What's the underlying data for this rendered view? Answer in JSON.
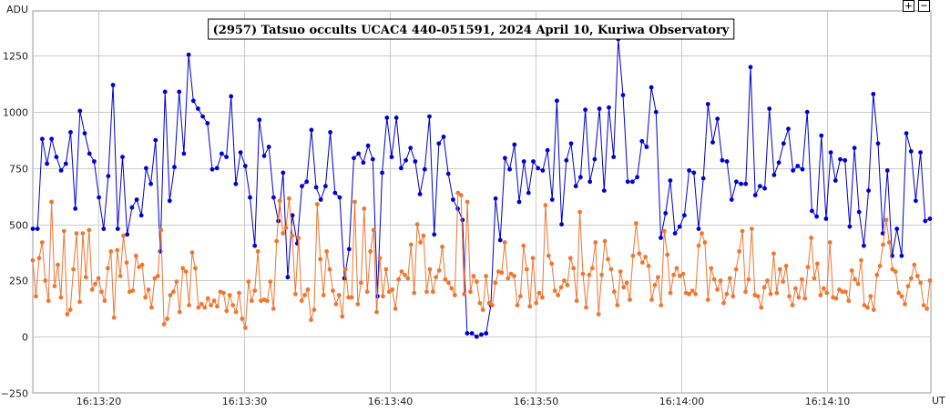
{
  "chart_data": {
    "type": "line",
    "title": "(2957) Tatsuo occults UCAC4 440-051591, 2024 April 10, Kuriwa Observatory",
    "ylabel": "ADU",
    "xlabel": "UT",
    "y_ticks": [
      "1250",
      "1000",
      "750",
      "500",
      "250",
      "0",
      "−250"
    ],
    "y_tick_values": [
      1250,
      1000,
      750,
      500,
      250,
      0,
      -250
    ],
    "x_ticks": [
      "16:13:20",
      "16:13:30",
      "16:13:40",
      "16:13:50",
      "16:14:00",
      "16:14:10"
    ],
    "ylim": [
      -250,
      1450
    ],
    "grid": true,
    "series": [
      {
        "color": "#0000cc",
        "values": [
          480,
          480,
          880,
          770,
          880,
          800,
          740,
          770,
          910,
          570,
          1005,
          905,
          815,
          780,
          620,
          480,
          715,
          1120,
          480,
          800,
          455,
          575,
          610,
          540,
          750,
          680,
          875,
          380,
          1090,
          605,
          755,
          1090,
          815,
          1255,
          1050,
          1015,
          980,
          950,
          745,
          750,
          815,
          800,
          1070,
          680,
          820,
          760,
          620,
          405,
          965,
          805,
          845,
          620,
          515,
          730,
          265,
          540,
          415,
          670,
          690,
          920,
          665,
          610,
          670,
          910,
          640,
          620,
          260,
          390,
          795,
          815,
          775,
          850,
          790,
          180,
          730,
          975,
          800,
          975,
          750,
          785,
          840,
          780,
          635,
          745,
          980,
          455,
          860,
          890,
          725,
          610,
          570,
          520,
          15,
          15,
          0,
          10,
          15,
          140,
          615,
          430,
          795,
          745,
          855,
          600,
          780,
          640,
          780,
          750,
          740,
          830,
          610,
          1050,
          500,
          785,
          860,
          670,
          710,
          1010,
          690,
          790,
          1015,
          650,
          1020,
          800,
          1325,
          1075,
          690,
          690,
          710,
          870,
          845,
          1110,
          1000,
          440,
          550,
          695,
          460,
          490,
          540,
          740,
          730,
          480,
          705,
          1035,
          865,
          970,
          785,
          780,
          610,
          690,
          680,
          680,
          1200,
          630,
          670,
          660,
          1015,
          720,
          775,
          860,
          925,
          740,
          760,
          745,
          1000,
          560,
          535,
          895,
          525,
          820,
          695,
          790,
          785,
          490,
          840,
          555,
          405,
          650,
          1080,
          860,
          460,
          740,
          360,
          480,
          360,
          905,
          825,
          605,
          820,
          515,
          525
        ]
      },
      {
        "color": "#ee7733",
        "values": [
          340,
          180,
          350,
          420,
          250,
          160,
          600,
          225,
          320,
          175,
          470,
          100,
          120,
          300,
          460,
          155,
          460,
          265,
          475,
          210,
          235,
          260,
          200,
          160,
          305,
          380,
          85,
          385,
          270,
          450,
          330,
          200,
          205,
          360,
          310,
          320,
          175,
          210,
          130,
          260,
          270,
          475,
          55,
          80,
          185,
          200,
          245,
          110,
          305,
          290,
          140,
          375,
          305,
          130,
          145,
          130,
          170,
          140,
          160,
          135,
          200,
          195,
          115,
          185,
          140,
          110,
          195,
          80,
          40,
          245,
          160,
          205,
          380,
          160,
          165,
          160,
          245,
          125,
          425,
          605,
          460,
          485,
          615,
          450,
          190,
          440,
          160,
          185,
          210,
          75,
          120,
          590,
          345,
          185,
          380,
          300,
          205,
          145,
          185,
          90,
          300,
          175,
          175,
          600,
          145,
          240,
          570,
          200,
          380,
          475,
          110,
          350,
          180,
          300,
          200,
          210,
          125,
          255,
          290,
          275,
          260,
          410,
          195,
          500,
          420,
          450,
          200,
          300,
          200,
          265,
          295,
          400,
          255,
          240,
          215,
          185,
          640,
          630,
          190,
          600,
          200,
          270,
          245,
          150,
          120,
          270,
          150,
          140,
          240,
          290,
          285,
          420,
          260,
          280,
          270,
          140,
          180,
          405,
          300,
          135,
          350,
          150,
          195,
          175,
          585,
          360,
          325,
          205,
          185,
          220,
          250,
          230,
          350,
          305,
          160,
          555,
          280,
          130,
          275,
          305,
          420,
          100,
          275,
          425,
          345,
          300,
          200,
          140,
          290,
          220,
          240,
          165,
          360,
          505,
          370,
          330,
          355,
          315,
          165,
          230,
          265,
          140,
          470,
          365,
          195,
          275,
          305,
          270,
          280,
          195,
          190,
          205,
          190,
          405,
          460,
          420,
          165,
          305,
          255,
          210,
          250,
          150,
          190,
          260,
          180,
          300,
          380,
          470,
          200,
          255,
          480,
          185,
          180,
          130,
          220,
          250,
          190,
          370,
          195,
          300,
          245,
          315,
          180,
          140,
          215,
          175,
          255,
          170,
          310,
          440,
          260,
          325,
          185,
          215,
          195,
          420,
          175,
          170,
          210,
          200,
          200,
          160,
          295,
          255,
          235,
          340,
          140,
          130,
          180,
          120,
          275,
          315,
          410,
          520,
          420,
          300,
          290,
          195,
          180,
          145,
          225,
          260,
          320,
          270,
          240,
          140,
          125,
          250
        ]
      }
    ]
  },
  "controls": {
    "zoom_in_label": "+",
    "zoom_out_label": "−"
  },
  "colors": {
    "grid": "#cccccc",
    "axis": "#999999",
    "title_border": "#000000"
  }
}
